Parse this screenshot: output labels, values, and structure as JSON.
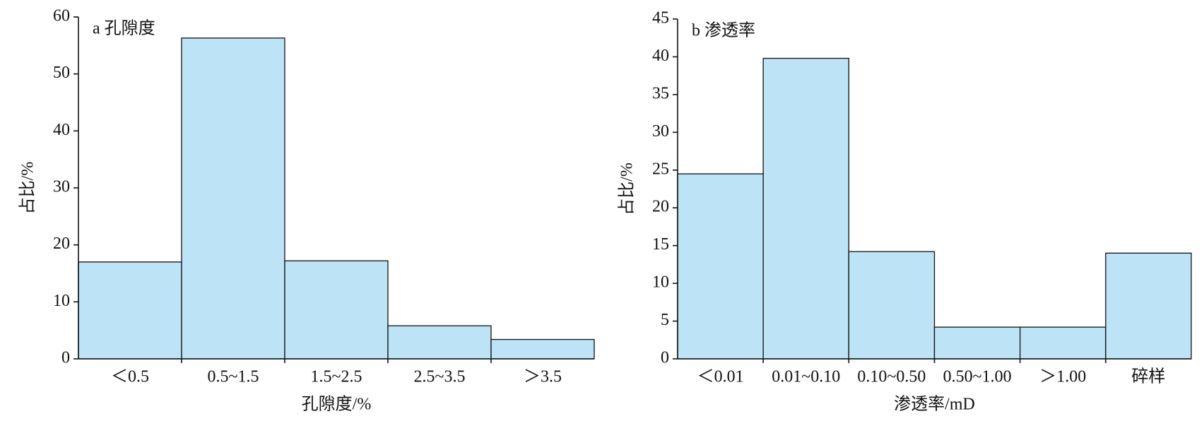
{
  "chart_data": [
    {
      "type": "bar",
      "title": "a 孔隙度",
      "x_label": "孔隙度/%",
      "y_label": "占比/%",
      "categories": [
        "＜0.5",
        "0.5~1.5",
        "1.5~2.5",
        "2.5~3.5",
        "＞3.5"
      ],
      "values": [
        17,
        56.3,
        17.2,
        5.8,
        3.4
      ],
      "color": "#bde3f7",
      "ylim": [
        0,
        60
      ],
      "yticks": [
        0,
        10,
        20,
        30,
        40,
        50,
        60
      ]
    },
    {
      "type": "bar",
      "title": "b 渗透率",
      "x_label": "渗透率/mD",
      "y_label": "占比/%",
      "categories": [
        "＜0.01",
        "0.01~0.10",
        "0.10~0.50",
        "0.50~1.00",
        "＞1.00",
        "碎样"
      ],
      "values": [
        24.5,
        39.8,
        14.2,
        4.2,
        4.2,
        14
      ],
      "color": "#bde3f7",
      "ylim": [
        0,
        45
      ],
      "yticks": [
        0,
        5,
        10,
        15,
        20,
        25,
        30,
        35,
        40,
        45
      ]
    }
  ]
}
